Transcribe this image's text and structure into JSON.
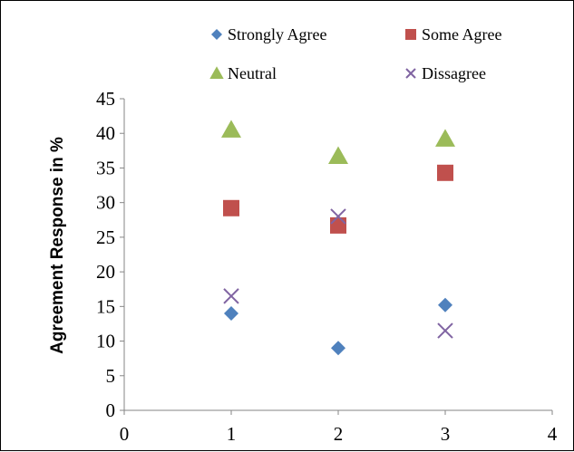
{
  "chart_data": {
    "type": "scatter",
    "title": "",
    "xlabel": "",
    "ylabel": "Agreement Response in %",
    "xlim": [
      0,
      4
    ],
    "ylim": [
      0,
      45
    ],
    "x_ticks": [
      0,
      1,
      2,
      3,
      4
    ],
    "y_ticks": [
      0,
      5,
      10,
      15,
      20,
      25,
      30,
      35,
      40,
      45
    ],
    "grid": false,
    "legend_position": "top",
    "series": [
      {
        "name": "Strongly Agree",
        "marker": "diamond",
        "color": "#4f81bd",
        "points": [
          {
            "x": 1,
            "y": 14
          },
          {
            "x": 2,
            "y": 9
          },
          {
            "x": 3,
            "y": 15.2
          }
        ]
      },
      {
        "name": "Some Agree",
        "marker": "square",
        "color": "#c0504d",
        "points": [
          {
            "x": 1,
            "y": 29.2
          },
          {
            "x": 2,
            "y": 26.7
          },
          {
            "x": 3,
            "y": 34.3
          }
        ]
      },
      {
        "name": "Neutral",
        "marker": "triangle",
        "color": "#9bbb59",
        "points": [
          {
            "x": 1,
            "y": 40.5
          },
          {
            "x": 2,
            "y": 36.7
          },
          {
            "x": 3,
            "y": 39.2
          }
        ]
      },
      {
        "name": "Dissagree",
        "marker": "x",
        "color": "#8064a2",
        "points": [
          {
            "x": 1,
            "y": 16.5
          },
          {
            "x": 2,
            "y": 28
          },
          {
            "x": 3,
            "y": 11.5
          }
        ]
      }
    ]
  }
}
